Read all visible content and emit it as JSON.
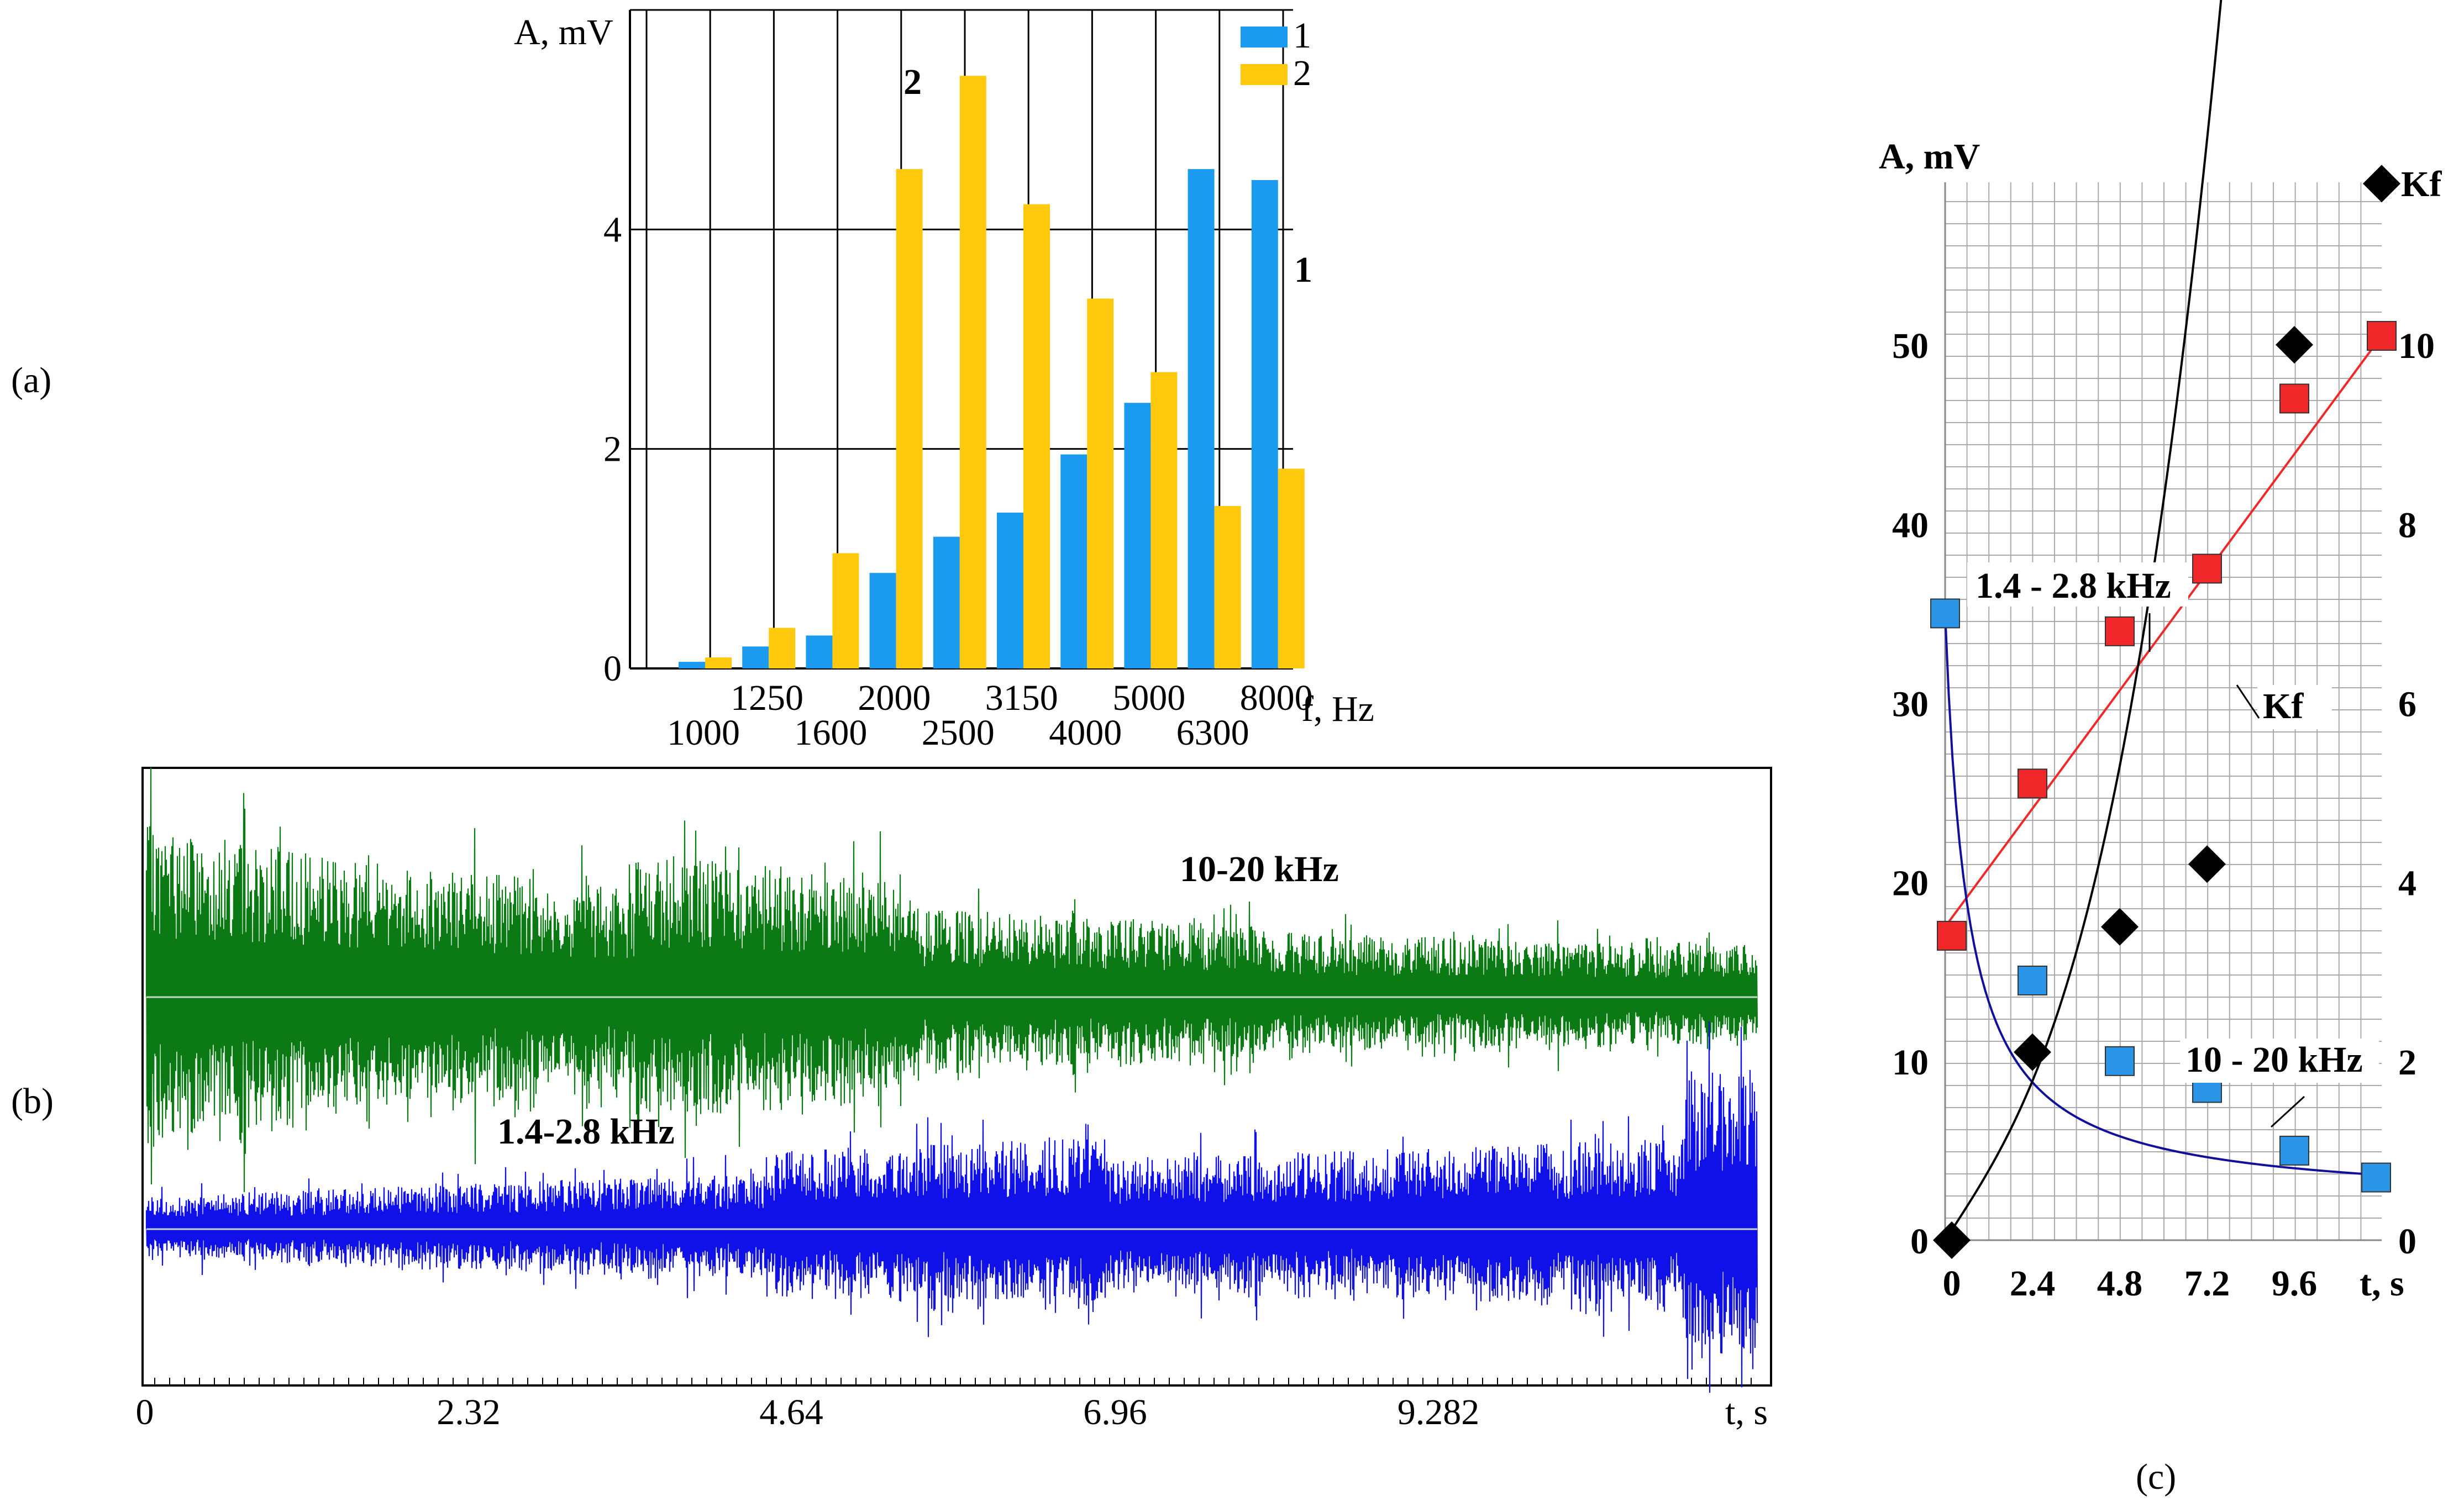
{
  "panel_labels": {
    "a": "(a)",
    "b": "(b)",
    "c": "(c)"
  },
  "colors": {
    "series1": "#1a9bf0",
    "series2": "#ffc90e",
    "green": "#0c7a14",
    "blue": "#1010e8",
    "red": "#f0282a",
    "lightblue": "#2b96e8",
    "darkline": "#10109a",
    "black": "#000000"
  },
  "chart_data": [
    {
      "id": "a",
      "type": "bar",
      "title": "",
      "ylabel": "A, mV",
      "xlabel": "f, Hz",
      "ylim": [
        0,
        6
      ],
      "yticks": [
        "0",
        "2",
        "4"
      ],
      "categories": [
        "1000",
        "1250",
        "1600",
        "2000",
        "2500",
        "3150",
        "4000",
        "5000",
        "6300",
        "8000"
      ],
      "xtick_row1": [
        "1250",
        "2000",
        "3150",
        "5000",
        "8000"
      ],
      "xtick_row2": [
        "1000",
        "1600",
        "2500",
        "4000",
        "6300"
      ],
      "series": [
        {
          "name": "1",
          "values": [
            0.06,
            0.2,
            0.3,
            0.87,
            1.2,
            1.42,
            1.95,
            2.42,
            4.55,
            4.45
          ]
        },
        {
          "name": "2",
          "values": [
            0.1,
            0.37,
            1.05,
            4.55,
            5.4,
            4.23,
            3.37,
            2.7,
            1.48,
            1.82
          ]
        }
      ],
      "annotations": [
        "2",
        "1"
      ],
      "legend": "top-right"
    },
    {
      "id": "b",
      "type": "line",
      "xlabel": "t, s",
      "xticks": [
        "0",
        "2.32",
        "4.64",
        "6.96",
        "9.282"
      ],
      "series": [
        {
          "name": "10-20 kHz",
          "color": "green"
        },
        {
          "name": "1.4-2.8 kHz",
          "color": "blue"
        }
      ]
    },
    {
      "id": "c",
      "type": "scatter",
      "ylabel_left": "A, mV",
      "ylabel_right": "Kf",
      "xlabel": "t, s",
      "xticks": [
        "0",
        "2.4",
        "4.8",
        "7.2",
        "9.6"
      ],
      "yticks_left": [
        "0",
        "10",
        "20",
        "30",
        "40",
        "50"
      ],
      "yticks_right": [
        "0",
        "2",
        "4",
        "6",
        "8",
        "10"
      ],
      "xlim": [
        0,
        12
      ],
      "ylim_left": [
        0,
        60
      ],
      "ylim_right": [
        0,
        12
      ],
      "series": [
        {
          "name": "1.4 - 2.8 kHz",
          "axis": "left",
          "marker": "square",
          "x": [
            0,
            2.4,
            4.8,
            7.2,
            9.6,
            12
          ],
          "y": [
            17,
            25.5,
            34,
            37.5,
            47,
            50.5
          ]
        },
        {
          "name": "10 - 20 kHz",
          "axis": "left",
          "marker": "square",
          "x": [
            0,
            2.4,
            4.8,
            7.2,
            9.6,
            12
          ],
          "y": [
            35,
            14.5,
            10,
            8.5,
            5,
            3.5
          ]
        },
        {
          "name": "Kf",
          "axis": "right",
          "marker": "diamond",
          "x": [
            0,
            2.4,
            4.8,
            7.2,
            9.6,
            12
          ],
          "y": [
            0,
            2.1,
            3.5,
            4.2,
            10,
            11.8
          ]
        }
      ],
      "annotations": [
        "1.4 - 2.8 kHz",
        "Kf",
        "10 - 20 kHz",
        "Kf"
      ]
    }
  ]
}
